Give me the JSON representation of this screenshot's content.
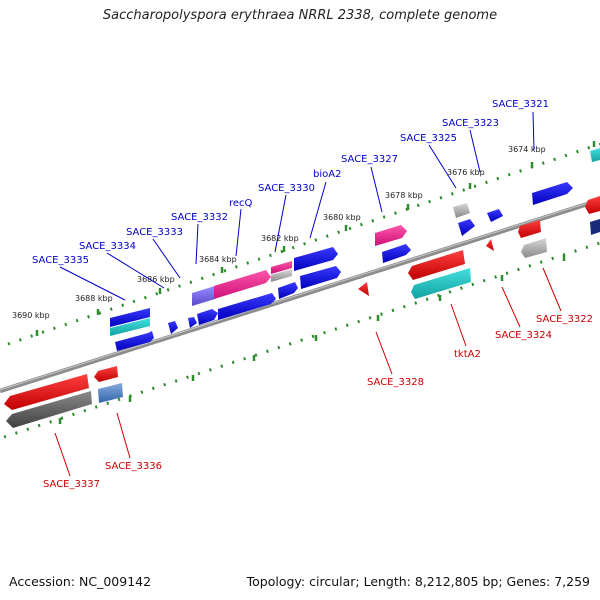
{
  "title": "Saccharopolyspora erythraea NRRL 2338, complete genome",
  "footer": {
    "accession": "Accession: NC_009142",
    "summary": "Topology: circular; Length: 8,212,805 bp; Genes: 7,259"
  },
  "ticks": {
    "t3690": "3690 kbp",
    "t3688": "3688 kbp",
    "t3686": "3686 kbp",
    "t3684": "3684 kbp",
    "t3682": "3682 kbp",
    "t3680": "3680 kbp",
    "t3678": "3678 kbp",
    "t3676": "3676 kbp",
    "t3674": "3674 kbp"
  },
  "gene_labels": {
    "sace_3321": "SACE_3321",
    "sace_3323": "SACE_3323",
    "sace_3325": "SACE_3325",
    "sace_3327": "SACE_3327",
    "bioa2": "bioA2",
    "sace_3330": "SACE_3330",
    "recq": "recQ",
    "sace_3332": "SACE_3332",
    "sace_3333": "SACE_3333",
    "sace_3334": "SACE_3334",
    "sace_3335": "SACE_3335",
    "sace_3322": "SACE_3322",
    "sace_3324": "SACE_3324",
    "tkta2": "tktA2",
    "sace_3328": "SACE_3328",
    "sace_3336": "SACE_3336",
    "sace_3337": "SACE_3337"
  },
  "colors": {
    "forward_label": "#0000cc",
    "reverse_label": "#cc0000",
    "tick": "#2e8b2e",
    "backbone": "#808080"
  }
}
